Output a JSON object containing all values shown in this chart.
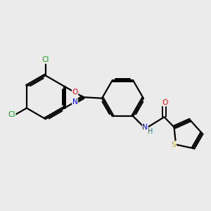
{
  "bg_color": "#ebebeb",
  "bond_color": "#000000",
  "bond_lw": 1.6,
  "atom_colors": {
    "Cl": "#00aa00",
    "O": "#ff0000",
    "N": "#0000ff",
    "S": "#ccaa00",
    "C": "#000000",
    "H": "#008888"
  },
  "font_size": 7.5
}
